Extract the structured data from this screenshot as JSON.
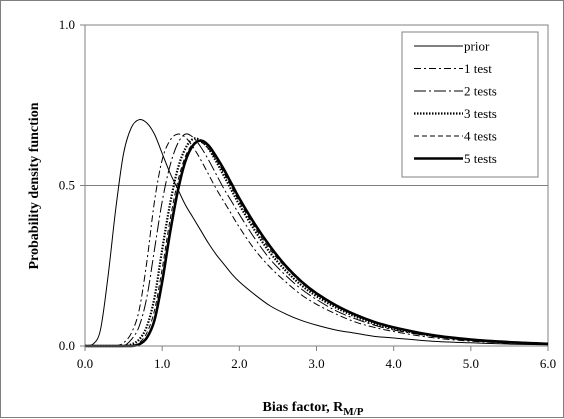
{
  "chart_data": {
    "type": "line",
    "title": "",
    "xlabel": "Bias factor, R",
    "xlabel_sub": "M/P",
    "ylabel": "Probability density function",
    "xlim": [
      0,
      6
    ],
    "ylim": [
      0,
      1
    ],
    "xticks": [
      "0.0",
      "1.0",
      "2.0",
      "3.0",
      "4.0",
      "5.0",
      "6.0"
    ],
    "yticks": [
      "0.0",
      "0.5",
      "1.0"
    ],
    "grid": "horizontal gridline at 0.5",
    "legend_position": "top-right",
    "x": [
      0,
      0.1,
      0.2,
      0.3,
      0.4,
      0.5,
      0.6,
      0.7,
      0.8,
      0.9,
      1.0,
      1.1,
      1.2,
      1.3,
      1.4,
      1.5,
      1.6,
      1.7,
      1.8,
      1.9,
      2.0,
      2.2,
      2.4,
      2.6,
      2.8,
      3.0,
      3.25,
      3.5,
      3.75,
      4.0,
      4.5,
      5.0,
      5.5,
      6.0
    ],
    "series": [
      {
        "name": "prior",
        "style": "solid-thin",
        "values": [
          0,
          0.005,
          0.05,
          0.22,
          0.43,
          0.6,
          0.68,
          0.705,
          0.695,
          0.66,
          0.6,
          0.54,
          0.49,
          0.44,
          0.4,
          0.36,
          0.32,
          0.285,
          0.255,
          0.225,
          0.2,
          0.16,
          0.125,
          0.1,
          0.08,
          0.065,
          0.05,
          0.04,
          0.03,
          0.025,
          0.015,
          0.01,
          0.006,
          0.004
        ]
      },
      {
        "name": "1 test",
        "style": "dash-dot",
        "values": [
          0,
          0,
          0,
          0,
          0,
          0.01,
          0.04,
          0.11,
          0.26,
          0.45,
          0.58,
          0.64,
          0.66,
          0.65,
          0.62,
          0.58,
          0.535,
          0.49,
          0.45,
          0.41,
          0.37,
          0.3,
          0.245,
          0.2,
          0.16,
          0.13,
          0.1,
          0.075,
          0.058,
          0.045,
          0.026,
          0.015,
          0.009,
          0.005
        ]
      },
      {
        "name": "2 tests",
        "style": "dash-dot-long",
        "values": [
          0,
          0,
          0,
          0,
          0,
          0,
          0.02,
          0.06,
          0.15,
          0.3,
          0.45,
          0.56,
          0.63,
          0.66,
          0.65,
          0.62,
          0.58,
          0.535,
          0.49,
          0.45,
          0.41,
          0.335,
          0.27,
          0.22,
          0.178,
          0.145,
          0.11,
          0.085,
          0.065,
          0.05,
          0.03,
          0.017,
          0.01,
          0.006
        ]
      },
      {
        "name": "3 tests",
        "style": "dotted",
        "values": [
          0,
          0,
          0,
          0,
          0,
          0,
          0.005,
          0.02,
          0.06,
          0.15,
          0.3,
          0.44,
          0.55,
          0.615,
          0.645,
          0.64,
          0.615,
          0.575,
          0.53,
          0.485,
          0.44,
          0.36,
          0.29,
          0.235,
          0.19,
          0.155,
          0.12,
          0.092,
          0.07,
          0.054,
          0.032,
          0.019,
          0.011,
          0.006
        ]
      },
      {
        "name": "4 tests",
        "style": "dashed",
        "values": [
          0,
          0,
          0,
          0,
          0,
          0,
          0,
          0.01,
          0.04,
          0.11,
          0.24,
          0.39,
          0.51,
          0.59,
          0.63,
          0.635,
          0.615,
          0.58,
          0.54,
          0.495,
          0.45,
          0.37,
          0.3,
          0.245,
          0.198,
          0.16,
          0.124,
          0.095,
          0.073,
          0.056,
          0.033,
          0.02,
          0.012,
          0.007
        ]
      },
      {
        "name": "5 tests",
        "style": "solid-thick",
        "values": [
          0,
          0,
          0,
          0,
          0,
          0,
          0,
          0.005,
          0.025,
          0.08,
          0.2,
          0.35,
          0.48,
          0.575,
          0.625,
          0.64,
          0.625,
          0.59,
          0.55,
          0.505,
          0.46,
          0.38,
          0.31,
          0.25,
          0.202,
          0.164,
          0.127,
          0.098,
          0.075,
          0.058,
          0.034,
          0.02,
          0.012,
          0.007
        ]
      }
    ]
  }
}
